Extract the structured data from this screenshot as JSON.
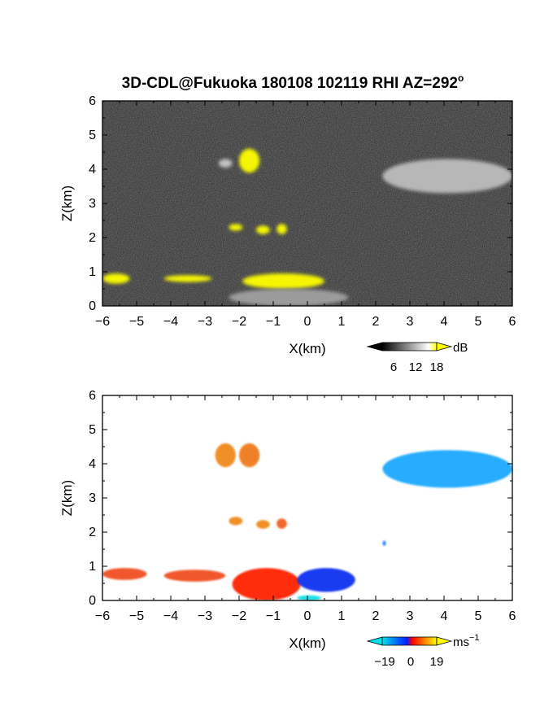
{
  "chart_data": [
    {
      "type": "heatmap",
      "title": "3D-CDL@Fukuoka 180108 102119 RHI AZ=292",
      "title_superscript": "o",
      "xlabel": "X(km)",
      "ylabel": "Z(km)",
      "xlim": [
        -6,
        6
      ],
      "ylim": [
        0,
        6
      ],
      "xticks": [
        -6,
        -5,
        -4,
        -3,
        -2,
        -1,
        0,
        1,
        2,
        3,
        4,
        5,
        6
      ],
      "yticks": [
        0,
        1,
        2,
        3,
        4,
        5,
        6
      ],
      "background_color": "#262626",
      "colorbar": {
        "unit": "dB",
        "ticks": [
          "6",
          "12",
          "18"
        ],
        "min": 0,
        "max": 21,
        "colors": [
          "#000000",
          "#ffffff",
          "#ffff00"
        ]
      },
      "features": [
        {
          "x_range": [
            2.2,
            6.0
          ],
          "z_range": [
            3.3,
            4.3
          ],
          "value_db": 10,
          "color": "#bdbdbd"
        },
        {
          "x_range": [
            -2.6,
            -2.2
          ],
          "z_range": [
            4.05,
            4.3
          ],
          "value_db": 12,
          "color": "#c8c8c8"
        },
        {
          "x_range": [
            -2.0,
            -1.4
          ],
          "z_range": [
            3.9,
            4.6
          ],
          "value_db": 19,
          "color": "#ffff00"
        },
        {
          "x_range": [
            -2.3,
            -1.9
          ],
          "z_range": [
            2.2,
            2.4
          ],
          "value_db": 19,
          "color": "#ffff00"
        },
        {
          "x_range": [
            -1.5,
            -1.1
          ],
          "z_range": [
            2.1,
            2.35
          ],
          "value_db": 19,
          "color": "#ffff00"
        },
        {
          "x_range": [
            -0.9,
            -0.6
          ],
          "z_range": [
            2.1,
            2.4
          ],
          "value_db": 19,
          "color": "#ffff00"
        },
        {
          "x_range": [
            -6.0,
            -5.2
          ],
          "z_range": [
            0.65,
            0.95
          ],
          "value_db": 19,
          "color": "#ffff00"
        },
        {
          "x_range": [
            -4.2,
            -2.8
          ],
          "z_range": [
            0.7,
            0.9
          ],
          "value_db": 19,
          "color": "#ffff00"
        },
        {
          "x_range": [
            -1.9,
            0.5
          ],
          "z_range": [
            0.5,
            0.95
          ],
          "value_db": 19,
          "color": "#ffff00"
        },
        {
          "x_range": [
            -2.3,
            1.2
          ],
          "z_range": [
            0.0,
            0.5
          ],
          "value_db": 10,
          "color": "#a0a0a0"
        }
      ]
    },
    {
      "type": "heatmap",
      "xlabel": "X(km)",
      "ylabel": "Z(km)",
      "xlim": [
        -6,
        6
      ],
      "ylim": [
        0,
        6
      ],
      "xticks": [
        -6,
        -5,
        -4,
        -3,
        -2,
        -1,
        0,
        1,
        2,
        3,
        4,
        5,
        6
      ],
      "yticks": [
        0,
        1,
        2,
        3,
        4,
        5,
        6
      ],
      "background_color": "#ffffff",
      "colorbar": {
        "unit": "ms",
        "unit_superscript": "−1",
        "ticks": [
          "−19",
          "0",
          "19"
        ],
        "min": -25,
        "max": 25,
        "colors": [
          "#00e0e8",
          "#0020ff",
          "#ff0000",
          "#ffff00"
        ]
      },
      "features": [
        {
          "x_range": [
            2.2,
            6.0
          ],
          "z_range": [
            3.3,
            4.4
          ],
          "value_ms": -14,
          "color": "#1aa8ff"
        },
        {
          "x_range": [
            -2.7,
            -2.1
          ],
          "z_range": [
            3.9,
            4.6
          ],
          "value_ms": 10,
          "color": "#f08a1a"
        },
        {
          "x_range": [
            -2.0,
            -1.4
          ],
          "z_range": [
            3.9,
            4.6
          ],
          "value_ms": 9,
          "color": "#f07a1a"
        },
        {
          "x_range": [
            -2.3,
            -1.9
          ],
          "z_range": [
            2.2,
            2.45
          ],
          "value_ms": 10,
          "color": "#f08a1a"
        },
        {
          "x_range": [
            -1.5,
            -1.1
          ],
          "z_range": [
            2.1,
            2.35
          ],
          "value_ms": 10,
          "color": "#f08a1a"
        },
        {
          "x_range": [
            -0.9,
            -0.6
          ],
          "z_range": [
            2.1,
            2.4
          ],
          "value_ms": 8,
          "color": "#f06020"
        },
        {
          "x_range": [
            -6.0,
            -4.7
          ],
          "z_range": [
            0.6,
            0.95
          ],
          "value_ms": 6,
          "color": "#f05020"
        },
        {
          "x_range": [
            -4.2,
            -2.4
          ],
          "z_range": [
            0.55,
            0.9
          ],
          "value_ms": 6,
          "color": "#f05020"
        },
        {
          "x_range": [
            -2.2,
            -0.2
          ],
          "z_range": [
            0.0,
            0.95
          ],
          "value_ms": 3,
          "color": "#ff2000"
        },
        {
          "x_range": [
            -0.3,
            1.4
          ],
          "z_range": [
            0.25,
            0.95
          ],
          "value_ms": -4,
          "color": "#1030f0"
        },
        {
          "x_range": [
            -0.3,
            0.4
          ],
          "z_range": [
            0.0,
            0.15
          ],
          "value_ms": -18,
          "color": "#10e0e8"
        },
        {
          "x_range": [
            2.2,
            2.3
          ],
          "z_range": [
            1.6,
            1.75
          ],
          "value_ms": -10,
          "color": "#2080ff"
        }
      ]
    }
  ]
}
